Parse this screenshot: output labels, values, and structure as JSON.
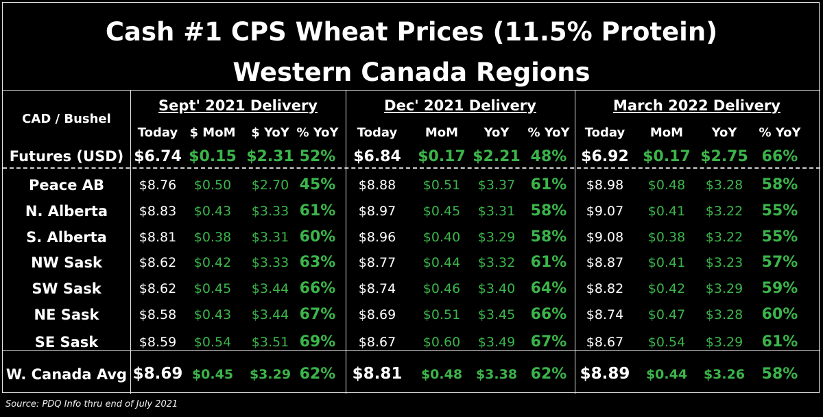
{
  "title": {
    "line1": "Cash #1 CPS Wheat Prices (11.5% Protein)",
    "line2": "Western Canada Regions"
  },
  "corner_label": "CAD / Bushel",
  "sections": [
    {
      "label": "Sept' 2021 Delivery",
      "columns": [
        "Today",
        "$ MoM",
        "$ YoY",
        "% YoY"
      ]
    },
    {
      "label": "Dec' 2021 Delivery",
      "columns": [
        "Today",
        "MoM",
        "YoY",
        "% YoY"
      ]
    },
    {
      "label": "March 2022 Delivery",
      "columns": [
        "Today",
        "MoM",
        "YoY",
        "% YoY"
      ]
    }
  ],
  "futures": {
    "label": "Futures (USD)",
    "values": [
      "$6.74",
      "$0.15",
      "$2.31",
      "52%",
      "$6.84",
      "$0.17",
      "$2.21",
      "48%",
      "$6.92",
      "$0.17",
      "$2.75",
      "66%"
    ]
  },
  "regions": [
    {
      "name": "Peace AB",
      "values": [
        "$8.76",
        "$0.50",
        "$2.70",
        "45%",
        "$8.88",
        "$0.51",
        "$3.37",
        "61%",
        "$8.98",
        "$0.48",
        "$3.28",
        "58%"
      ]
    },
    {
      "name": "N. Alberta",
      "values": [
        "$8.83",
        "$0.43",
        "$3.33",
        "61%",
        "$8.97",
        "$0.45",
        "$3.31",
        "58%",
        "$9.07",
        "$0.41",
        "$3.22",
        "55%"
      ]
    },
    {
      "name": "S. Alberta",
      "values": [
        "$8.81",
        "$0.38",
        "$3.31",
        "60%",
        "$8.96",
        "$0.40",
        "$3.29",
        "58%",
        "$9.08",
        "$0.38",
        "$3.22",
        "55%"
      ]
    },
    {
      "name": "NW Sask",
      "values": [
        "$8.62",
        "$0.42",
        "$3.33",
        "63%",
        "$8.77",
        "$0.44",
        "$3.32",
        "61%",
        "$8.87",
        "$0.41",
        "$3.23",
        "57%"
      ]
    },
    {
      "name": "SW Sask",
      "values": [
        "$8.62",
        "$0.45",
        "$3.44",
        "66%",
        "$8.74",
        "$0.46",
        "$3.40",
        "64%",
        "$8.82",
        "$0.42",
        "$3.29",
        "59%"
      ]
    },
    {
      "name": "NE Sask",
      "values": [
        "$8.58",
        "$0.43",
        "$3.44",
        "67%",
        "$8.69",
        "$0.51",
        "$3.45",
        "66%",
        "$8.74",
        "$0.47",
        "$3.28",
        "60%"
      ]
    },
    {
      "name": "SE Sask",
      "values": [
        "$8.59",
        "$0.54",
        "$3.51",
        "69%",
        "$8.67",
        "$0.60",
        "$3.49",
        "67%",
        "$8.67",
        "$0.54",
        "$3.29",
        "61%"
      ]
    }
  ],
  "average": {
    "label": "W. Canada Avg",
    "values": [
      "$8.69",
      "$0.45",
      "$3.29",
      "62%",
      "$8.81",
      "$0.48",
      "$3.38",
      "62%",
      "$8.89",
      "$0.44",
      "$3.26",
      "58%"
    ]
  },
  "source": "Source: PDQ Info thru end of July 2021",
  "colors": {
    "positive": "#3bb54a",
    "text": "#ffffff",
    "background": "#000000",
    "border": "#e6e6e6"
  }
}
